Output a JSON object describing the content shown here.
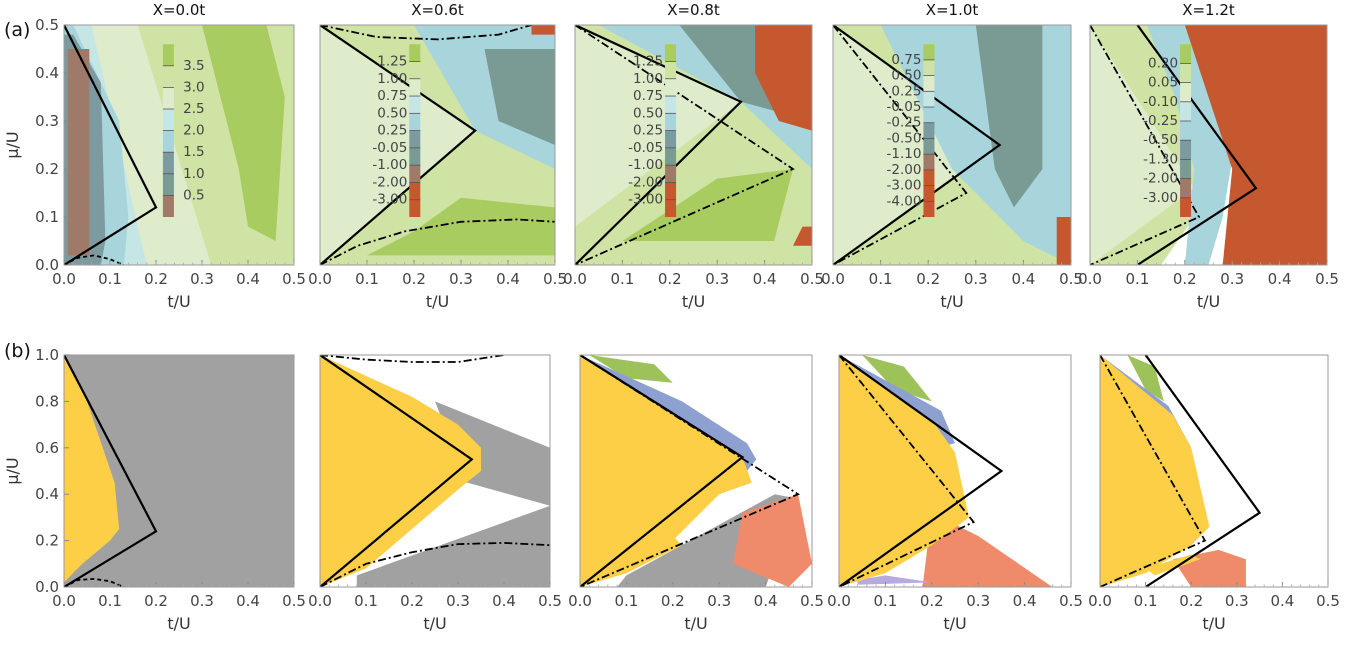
{
  "panel_labels": {
    "a": "(a)",
    "b": "(b)"
  },
  "colors": {
    "brown": "#a07a68",
    "steel": "#7d9aa0",
    "lightblue": "#a8d4dc",
    "paleblue": "#c6e6e6",
    "palegreen": "#dfeccb",
    "lightgreen": "#cfe3a4",
    "green": "#a9cc60",
    "greengrey": "#7a9a94",
    "orange": "#c5582e",
    "yellow": "#fccf47",
    "grey": "#a1a1a1",
    "salmon": "#ef8a6a",
    "purple": "#8ea0d0",
    "olive": "#9ec25a",
    "lilac": "#b8aade",
    "boundary": "#000000"
  },
  "chart_data": [
    {
      "type": "heatmap",
      "row": "a",
      "title": "X=0.0t",
      "xlabel": "t/U",
      "ylabel": "μ/U",
      "xlim": [
        0,
        0.5
      ],
      "ylim": [
        0,
        0.5
      ],
      "xticks": [
        "0.0",
        "0.1",
        "0.2",
        "0.3",
        "0.4",
        "0.5"
      ],
      "yticks": [
        "0.0",
        "0.1",
        "0.2",
        "0.3",
        "0.4",
        "0.5"
      ],
      "colorbar": [
        "3.5",
        "3.0",
        "2.5",
        "2.0",
        "1.5",
        "1.0",
        "0.5"
      ]
    },
    {
      "type": "heatmap",
      "row": "a",
      "title": "X=0.6t",
      "xlabel": "t/U",
      "xlim": [
        0,
        0.5
      ],
      "ylim": [
        0,
        0.5
      ],
      "xticks": [
        "0.0",
        "0.1",
        "0.2",
        "0.3",
        "0.4",
        "0.5"
      ],
      "colorbar": [
        "1.25",
        "1.00",
        "0.75",
        "0.50",
        "0.25",
        "-0.05",
        "-1.00",
        "-2.00",
        "-3.00"
      ]
    },
    {
      "type": "heatmap",
      "row": "a",
      "title": "X=0.8t",
      "xlabel": "t/U",
      "xlim": [
        0,
        0.5
      ],
      "ylim": [
        0,
        0.5
      ],
      "xticks": [
        "0.0",
        "0.1",
        "0.2",
        "0.3",
        "0.4",
        "0.5"
      ],
      "colorbar": [
        "1.25",
        "1.00",
        "0.75",
        "0.50",
        "0.25",
        "-0.05",
        "-1.00",
        "-2.00",
        "-3.00"
      ]
    },
    {
      "type": "heatmap",
      "row": "a",
      "title": "X=1.0t",
      "xlabel": "t/U",
      "xlim": [
        0,
        0.5
      ],
      "ylim": [
        0,
        0.5
      ],
      "xticks": [
        "0.0",
        "0.1",
        "0.2",
        "0.3",
        "0.4",
        "0.5"
      ],
      "colorbar": [
        "0.75",
        "0.50",
        "0.25",
        "-0.05",
        "-0.25",
        "-0.50",
        "-1.10",
        "-2.00",
        "-3.00",
        "-4.00"
      ]
    },
    {
      "type": "heatmap",
      "row": "a",
      "title": "X=1.2t",
      "xlabel": "t/U",
      "xlim": [
        0,
        0.5
      ],
      "ylim": [
        0,
        0.5
      ],
      "xticks": [
        "0.0",
        "0.1",
        "0.2",
        "0.3",
        "0.4",
        "0.5"
      ],
      "colorbar": [
        "0.20",
        "0.05",
        "-0.10",
        "-0.25",
        "-0.50",
        "-1.30",
        "-2.00",
        "-3.00"
      ]
    },
    {
      "type": "area",
      "row": "b",
      "xlabel": "t/U",
      "ylabel": "μ/U",
      "xlim": [
        0,
        0.5
      ],
      "ylim": [
        0,
        1.0
      ],
      "xticks": [
        "0.0",
        "0.1",
        "0.2",
        "0.3",
        "0.4",
        "0.5"
      ],
      "yticks": [
        "0.0",
        "0.2",
        "0.4",
        "0.6",
        "0.8",
        "1.0"
      ]
    },
    {
      "type": "area",
      "row": "b",
      "xlabel": "t/U",
      "xlim": [
        0,
        0.5
      ],
      "ylim": [
        0,
        1.0
      ],
      "xticks": [
        "0.0",
        "0.1",
        "0.2",
        "0.3",
        "0.4",
        "0.5"
      ]
    },
    {
      "type": "area",
      "row": "b",
      "xlabel": "t/U",
      "xlim": [
        0,
        0.5
      ],
      "ylim": [
        0,
        1.0
      ],
      "xticks": [
        "0.0",
        "0.1",
        "0.2",
        "0.3",
        "0.4",
        "0.5"
      ]
    },
    {
      "type": "area",
      "row": "b",
      "xlabel": "t/U",
      "xlim": [
        0,
        0.5
      ],
      "ylim": [
        0,
        1.0
      ],
      "xticks": [
        "0.0",
        "0.1",
        "0.2",
        "0.3",
        "0.4",
        "0.5"
      ]
    },
    {
      "type": "area",
      "row": "b",
      "xlabel": "t/U",
      "xlim": [
        0,
        0.5
      ],
      "ylim": [
        0,
        1.0
      ],
      "xticks": [
        "0.0",
        "0.1",
        "0.2",
        "0.3",
        "0.4",
        "0.5"
      ]
    }
  ]
}
